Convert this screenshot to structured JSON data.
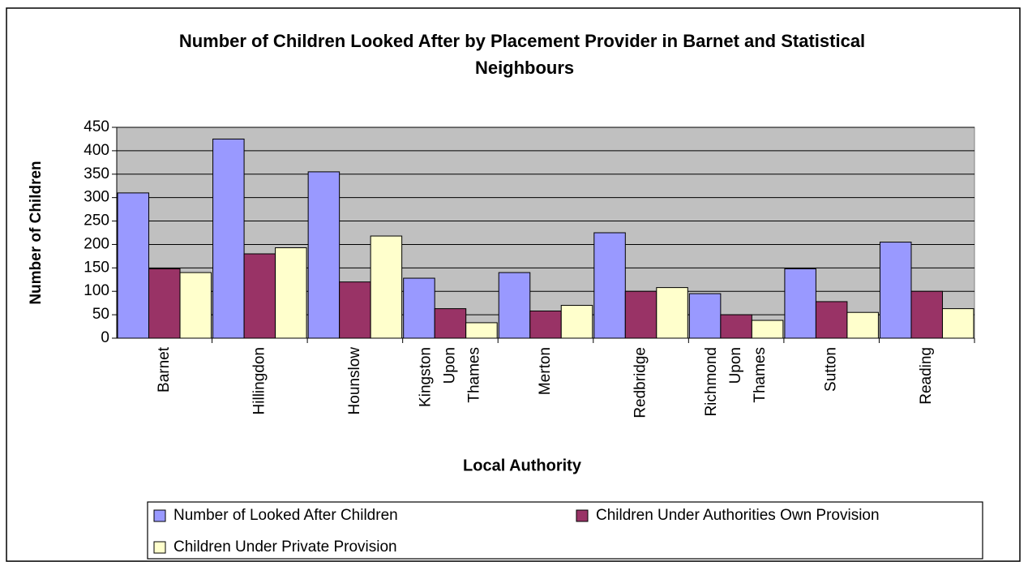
{
  "chart_data": {
    "type": "bar",
    "title": "Number of Children Looked After by Placement Provider in Barnet and Statistical Neighbours",
    "xlabel": "Local Authority",
    "ylabel": "Number of Children",
    "categories": [
      "Barnet",
      "Hillingdon",
      "Hounslow",
      "Kingston Upon Thames",
      "Merton",
      "Redbridge",
      "Richmond Upon Thames",
      "Sutton",
      "Reading"
    ],
    "series": [
      {
        "name": "Number of Looked After Children",
        "color": "#9999ff",
        "values": [
          310,
          425,
          355,
          128,
          140,
          225,
          95,
          148,
          205
        ]
      },
      {
        "name": "Children Under Authorities Own Provision",
        "color": "#993366",
        "values": [
          148,
          180,
          120,
          63,
          58,
          100,
          50,
          78,
          100
        ]
      },
      {
        "name": "Children Under Private Provision",
        "color": "#ffffcc",
        "values": [
          140,
          193,
          218,
          33,
          70,
          108,
          38,
          55,
          63
        ]
      }
    ],
    "ylim": [
      0,
      450
    ],
    "yticks": [
      0,
      50,
      100,
      150,
      200,
      250,
      300,
      350,
      400,
      450
    ],
    "grid": true,
    "plot_background": "#c0c0c0",
    "legend": "bottom"
  }
}
